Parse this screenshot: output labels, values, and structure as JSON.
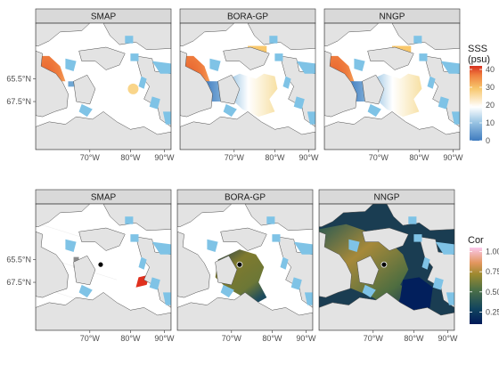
{
  "figure": {
    "top_row": {
      "panels": [
        "SMAP",
        "BORA-GP",
        "NNGP"
      ],
      "y_ticks": [
        "65.5°N",
        "67.5°N"
      ],
      "x_ticks": [
        "70°W",
        "80°W",
        "90°W"
      ],
      "legend": {
        "title_line1": "SSS",
        "title_line2": "(psu)",
        "ticks": [
          "40",
          "30",
          "20",
          "10",
          "0"
        ],
        "range": [
          0,
          42
        ],
        "colormap": "blue-white-red"
      }
    },
    "bottom_row": {
      "panels": [
        "SMAP",
        "BORA-GP",
        "NNGP"
      ],
      "y_ticks": [
        "65.5°N",
        "67.5°N"
      ],
      "x_ticks": [
        "70°W",
        "80°W",
        "90°W"
      ],
      "legend": {
        "title": "Cor",
        "ticks": [
          "1.00",
          "0.75",
          "0.50",
          "0.25"
        ],
        "range": [
          0.1,
          1.05
        ],
        "colormap": "batlow"
      }
    },
    "colors": {
      "land": "#e3e3e3",
      "water": "#7fc3e6",
      "coast": "#4d4d4d",
      "strip": "#d9d9d9",
      "missing": "#ffffff"
    }
  }
}
